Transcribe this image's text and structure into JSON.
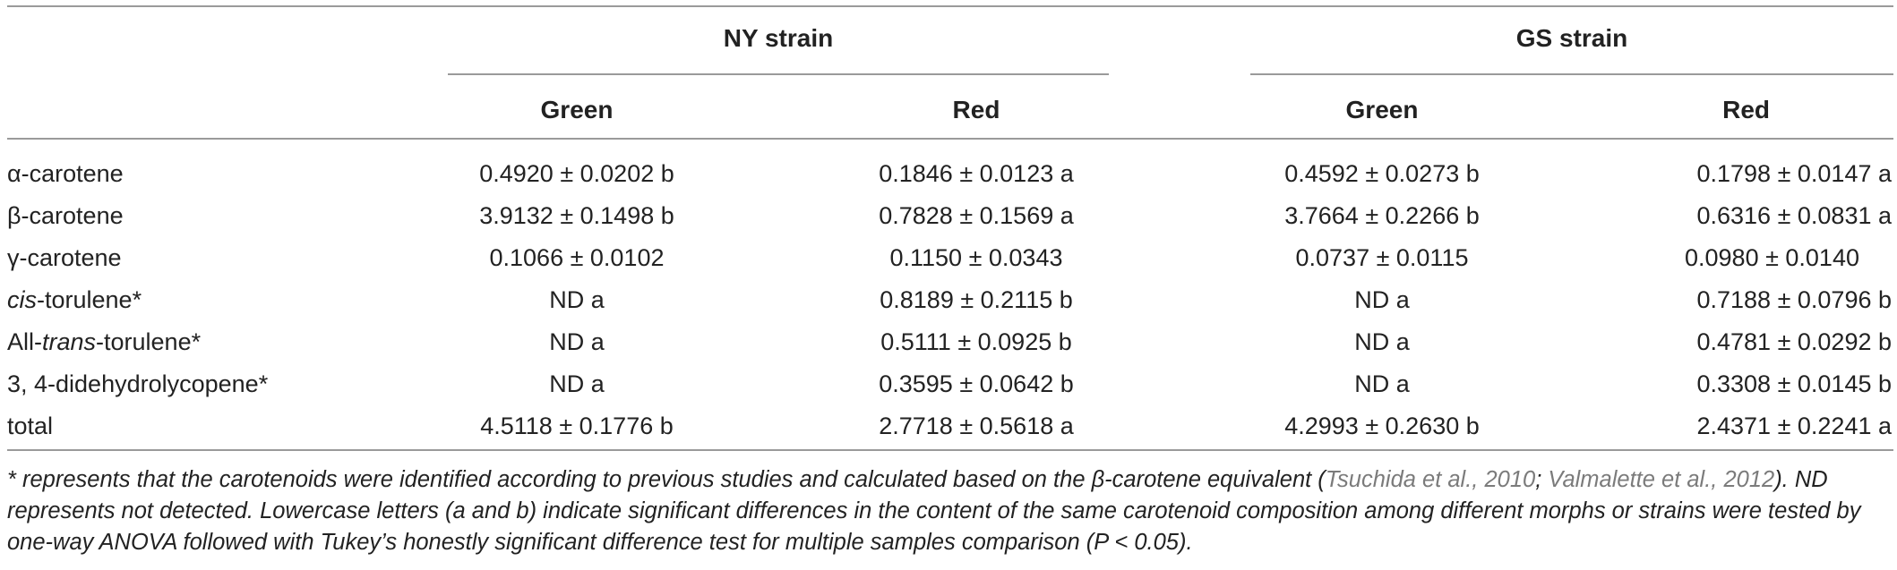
{
  "table": {
    "strains": [
      "NY strain",
      "GS strain"
    ],
    "morphs": [
      "Green",
      "Red",
      "Green",
      "Red"
    ],
    "rows": [
      {
        "label_pre": "α-carotene",
        "label_em": "",
        "label_post": "",
        "values": [
          "0.4920 ± 0.0202 b",
          "0.1846 ± 0.0123 a",
          "0.4592 ± 0.0273 b",
          "0.1798 ± 0.0147 a"
        ]
      },
      {
        "label_pre": "β-carotene",
        "label_em": "",
        "label_post": "",
        "values": [
          "3.9132 ± 0.1498 b",
          "0.7828 ± 0.1569 a",
          "3.7664 ± 0.2266 b",
          "0.6316 ± 0.0831 a"
        ]
      },
      {
        "label_pre": "γ-carotene",
        "label_em": "",
        "label_post": "",
        "values": [
          "0.1066 ± 0.0102",
          "0.1150 ± 0.0343",
          "0.0737 ± 0.0115",
          "0.0980 ± 0.0140"
        ]
      },
      {
        "label_pre": "",
        "label_em": "cis",
        "label_post": "-torulene*",
        "values": [
          "ND a",
          "0.8189 ± 0.2115 b",
          "ND a",
          "0.7188 ± 0.0796 b"
        ]
      },
      {
        "label_pre": "All-",
        "label_em": "trans",
        "label_post": "-torulene*",
        "values": [
          "ND a",
          "0.5111 ± 0.0925 b",
          "ND a",
          "0.4781 ± 0.0292 b"
        ]
      },
      {
        "label_pre": "3, 4-didehydrolycopene*",
        "label_em": "",
        "label_post": "",
        "values": [
          "ND a",
          "0.3595 ± 0.0642 b",
          "ND a",
          "0.3308 ± 0.0145 b"
        ]
      },
      {
        "label_pre": "total",
        "label_em": "",
        "label_post": "",
        "values": [
          "4.5118 ± 0.1776 b",
          "2.7718 ± 0.5618 a",
          "4.2993 ± 0.2630 b",
          "2.4371 ± 0.2241 a"
        ]
      }
    ]
  },
  "footnote": {
    "t1": "* represents that the carotenoids were identified according to previous studies and calculated based on the β-carotene equivalent (",
    "cite1": "Tsuchida et al., 2010",
    "t2": "; ",
    "cite2": "Valmalette et al., 2012",
    "t3": "). ND represents not detected. Lowercase letters (a and b) indicate significant differences in the content of the same carotenoid composition among different morphs or strains were tested by one-way ANOVA followed with Tukey’s honestly significant difference test for multiple samples comparison (P < 0.05)."
  }
}
